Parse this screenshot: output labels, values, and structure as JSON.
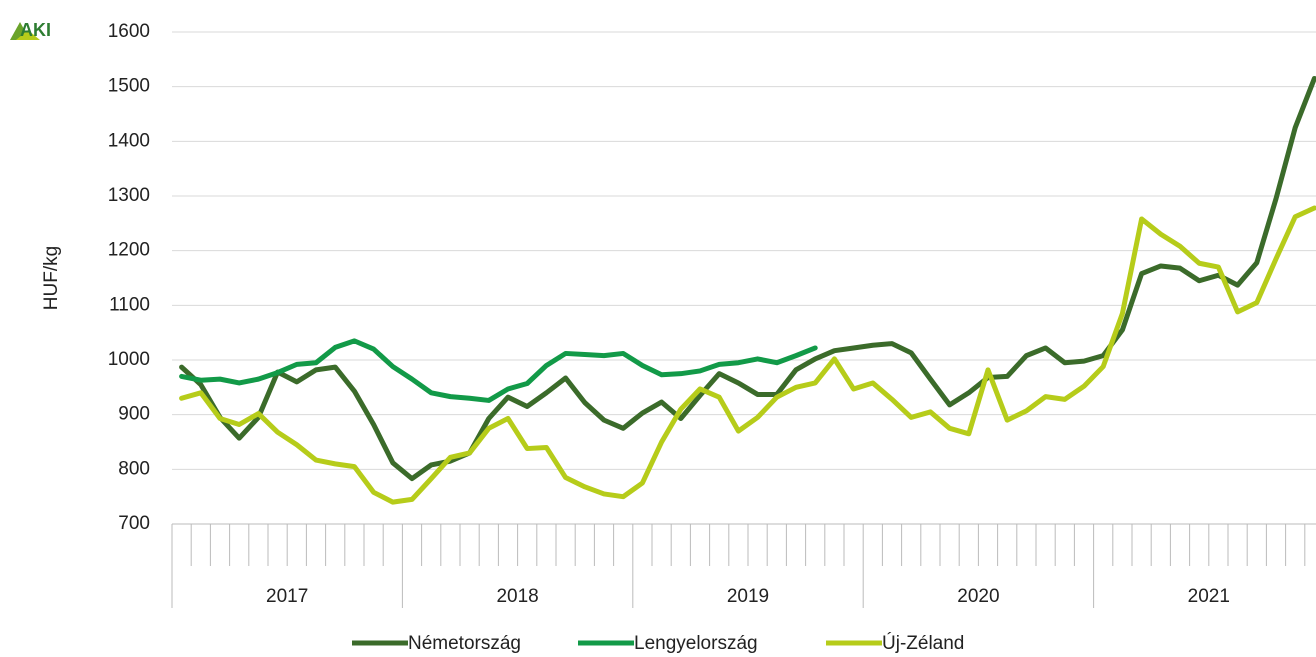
{
  "logo": "AKI",
  "chart_data": {
    "type": "line",
    "y_label": "HUF/kg",
    "categories": [
      null,
      null,
      null,
      null,
      null,
      null,
      null,
      null,
      null,
      null,
      null,
      null,
      null,
      null,
      null,
      null,
      null,
      null,
      null,
      null,
      null,
      null,
      null,
      null,
      null,
      null,
      null,
      null,
      null,
      null,
      null,
      null,
      null,
      null,
      null,
      null,
      null,
      null,
      null,
      null,
      null,
      null,
      null,
      null,
      null,
      null,
      null,
      null,
      null,
      null,
      null,
      null,
      null,
      null,
      null,
      null,
      null,
      null,
      null,
      null
    ],
    "category_groups": [
      "2017",
      "2018",
      "2019",
      "2020",
      "2021"
    ],
    "ylim": [
      700,
      1600
    ],
    "yticks": [
      700,
      800,
      900,
      1000,
      1100,
      1200,
      1300,
      1400,
      1500,
      1600
    ],
    "grid": true,
    "legend": "bottom",
    "series": [
      {
        "name": "Németország",
        "color": "#3b6b2a",
        "values": [
          987,
          955,
          895,
          857,
          895,
          978,
          960,
          982,
          987,
          943,
          882,
          812,
          783,
          808,
          815,
          830,
          893,
          932,
          915,
          940,
          967,
          922,
          890,
          875,
          903,
          923,
          893,
          935,
          975,
          958,
          937,
          937,
          982,
          1002,
          1017,
          1022,
          1027,
          1030,
          1013,
          965,
          918,
          940,
          968,
          970,
          1008,
          1022,
          995,
          998,
          1008,
          1055,
          1158,
          1172,
          1168,
          1145,
          1155,
          1137,
          1178,
          1295,
          1425,
          1515
        ]
      },
      {
        "name": "Lengyelország",
        "color": "#129a48",
        "values": [
          970,
          963,
          965,
          958,
          965,
          977,
          992,
          995,
          1023,
          1035,
          1020,
          988,
          965,
          940,
          933,
          930,
          926,
          947,
          957,
          990,
          1012,
          1010,
          1008,
          1012,
          990,
          973,
          975,
          980,
          992,
          995,
          1002,
          995,
          1008,
          1022,
          null,
          null,
          null,
          null,
          null,
          null,
          null,
          null,
          null,
          null,
          null,
          null,
          null,
          null,
          null,
          null,
          null,
          null,
          null,
          null,
          null,
          null,
          null,
          null,
          null,
          null
        ]
      },
      {
        "name": "Új-Zéland",
        "color": "#b6cc1a",
        "values": [
          930,
          940,
          893,
          882,
          902,
          868,
          845,
          817,
          810,
          805,
          758,
          740,
          745,
          783,
          822,
          830,
          875,
          893,
          838,
          840,
          785,
          768,
          755,
          750,
          775,
          850,
          910,
          947,
          932,
          870,
          895,
          932,
          950,
          958,
          1002,
          947,
          958,
          928,
          895,
          905,
          875,
          865,
          982,
          890,
          907,
          933,
          928,
          952,
          988,
          1085,
          1258,
          1230,
          1208,
          1177,
          1170,
          1088,
          1105,
          1185,
          1262,
          1278
        ]
      }
    ]
  }
}
